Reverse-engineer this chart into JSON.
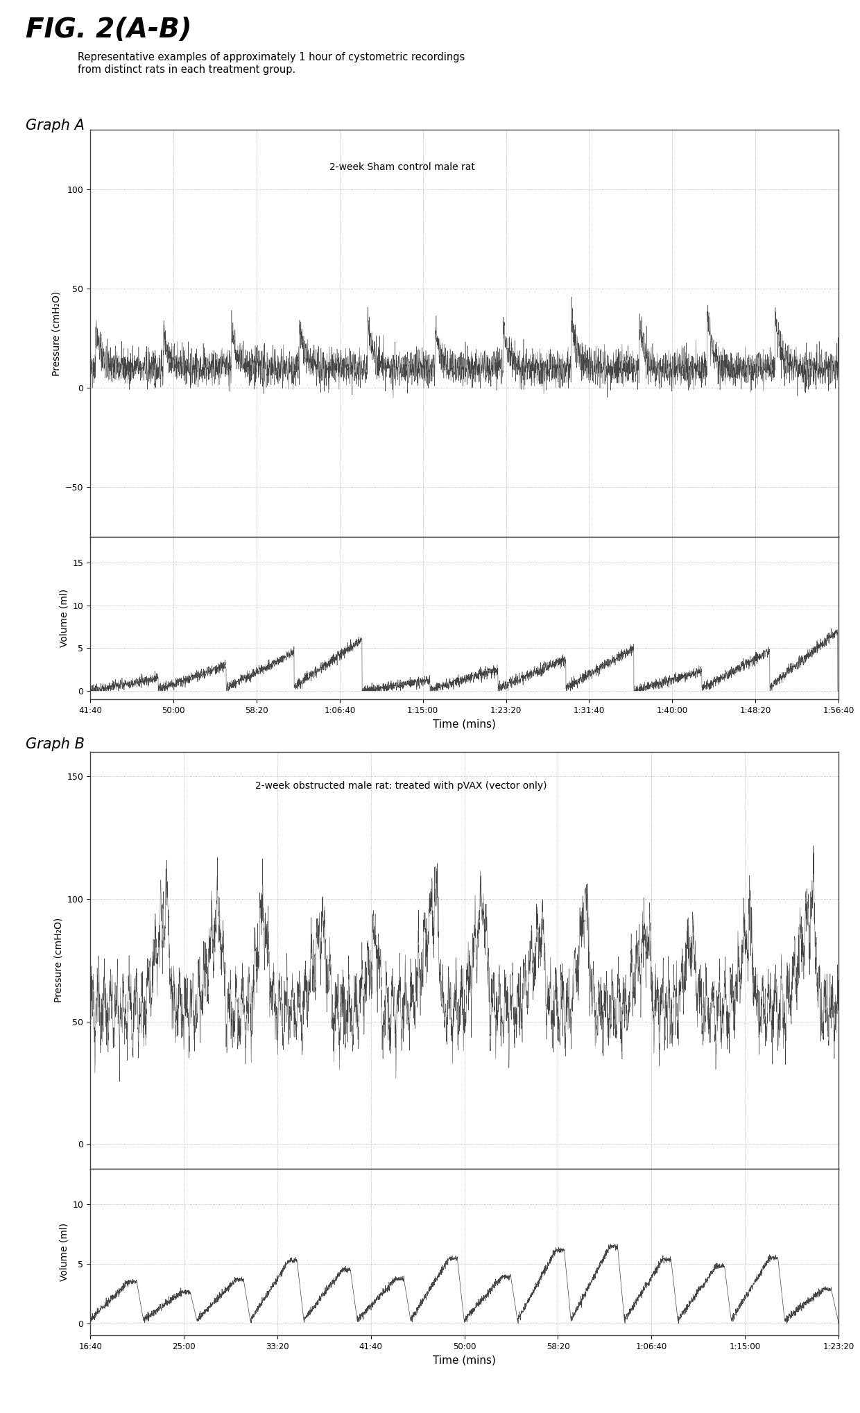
{
  "fig_title": "FIG. 2(A-B)",
  "fig_subtitle": "Representative examples of approximately 1 hour of cystometric recordings\nfrom distinct rats in each treatment group.",
  "graph_a_label": "Graph A",
  "graph_b_label": "Graph B",
  "graph_a_pressure_annotation": "2-week Sham control male rat",
  "graph_b_pressure_annotation": "2-week obstructed male rat: treated with pVAX (vector only)",
  "ylabel_pressure": "Pressure (cmH₂O)",
  "ylabel_volume": "Volume (ml)",
  "xlabel": "Time (mins)",
  "graph_a_xticks": [
    "41:40",
    "50:00",
    "58:20",
    "1:06:40",
    "1:15:00",
    "1:23:20",
    "1:31:40",
    "1:40:00",
    "1:48:20",
    "1:56:40"
  ],
  "graph_b_xticks": [
    "16:40",
    "25:00",
    "33:20",
    "41:40",
    "50:00",
    "58:20",
    "1:06:40",
    "1:15:00",
    "1:23:20"
  ],
  "graph_a_pressure_ylim": [
    -75,
    130
  ],
  "graph_a_pressure_yticks": [
    -50,
    0,
    50,
    100
  ],
  "graph_a_volume_ylim": [
    -1,
    18
  ],
  "graph_a_volume_yticks": [
    0,
    5,
    10,
    15
  ],
  "graph_b_pressure_ylim": [
    -10,
    160
  ],
  "graph_b_pressure_yticks": [
    0,
    50,
    100,
    150
  ],
  "graph_b_volume_ylim": [
    -1,
    13
  ],
  "graph_b_volume_yticks": [
    0,
    5,
    10
  ],
  "background_color": "#ffffff",
  "line_color": "#303030",
  "grid_color": "#aaaaaa"
}
